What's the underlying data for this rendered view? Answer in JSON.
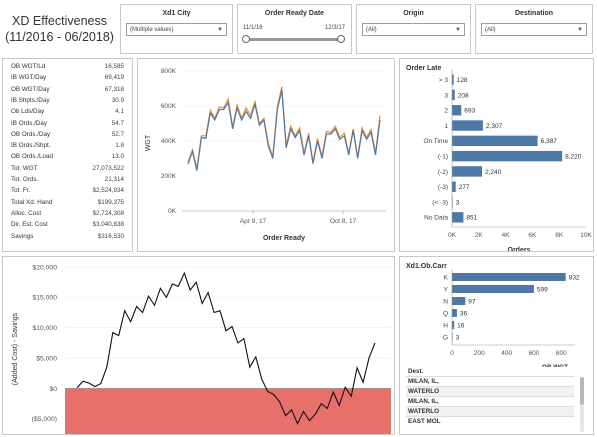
{
  "header": {
    "title": "XD Effectiveness",
    "subtitle": "(11/2016 - 06/2018)"
  },
  "filters": {
    "xd1_city": {
      "label": "Xd1 City",
      "value": "(Multiple values)"
    },
    "order_ready_date": {
      "label": "Order Ready Date",
      "start": "11/1/16",
      "end": "12/3/17"
    },
    "origin": {
      "label": "Origin",
      "value": "(All)"
    },
    "destination": {
      "label": "Destination",
      "value": "(All)"
    }
  },
  "kpis": [
    {
      "label": "OB WGT/Ld",
      "value": "16,585"
    },
    {
      "label": "IB WGT/Day",
      "value": "69,419"
    },
    {
      "label": "OB WGT/Day",
      "value": "67,318"
    },
    {
      "label": "IB Shpts./Day",
      "value": "30.9"
    },
    {
      "label": "Ob Lds/Day",
      "value": "4.1"
    },
    {
      "label": "IB Ords./Day",
      "value": "54.7"
    },
    {
      "label": "OB Ords./Day",
      "value": "52.7"
    },
    {
      "label": "IB Ords./Shpt.",
      "value": "1.8"
    },
    {
      "label": "OB Ords./Load",
      "value": "13.0"
    },
    {
      "label": "Tot. WGT",
      "value": "27,073,522"
    },
    {
      "label": "Tot. Ords.",
      "value": "21,314"
    },
    {
      "label": "Tot. Fr.",
      "value": "$2,524,934"
    },
    {
      "label": "Total Xd. Hand",
      "value": "$199,375"
    },
    {
      "label": "Alloc. Cost",
      "value": "$2,724,308"
    },
    {
      "label": "Dir. Est. Cost",
      "value": "$3,040,838"
    },
    {
      "label": "Savings",
      "value": "$316,530"
    }
  ],
  "wgt_chart": {
    "ylabel": "WGT",
    "xlabel": "Order Ready",
    "y_ticks": [
      "800K",
      "600K",
      "400K",
      "200K",
      "0K"
    ],
    "x_ticks": [
      "Apr 9, 17",
      "Oct 8, 17"
    ],
    "colors": {
      "series_a": "#4e79a7",
      "series_b": "#f28e2b"
    }
  },
  "order_late": {
    "title": "Order Late",
    "xlabel": "Orders",
    "x_ticks": [
      "0K",
      "2K",
      "4K",
      "6K",
      "8K",
      "10K"
    ],
    "bar_color": "#4e79a7"
  },
  "savings_chart": {
    "ylabel": "(Added Cost) - Savings",
    "y_ticks": [
      "$20,000",
      "$15,000",
      "$10,000",
      "$5,000",
      "$0",
      "($5,000)"
    ],
    "colors": {
      "negative_band": "#e8706a",
      "line": "#111111"
    }
  },
  "carrier": {
    "title": "Xd1.Ob.Carr",
    "xlabel": "OB WGT",
    "x_ticks": [
      "0",
      "200",
      "400",
      "600",
      "800"
    ],
    "bar_color": "#4e79a7"
  },
  "dest_table": {
    "header": "Dest.",
    "rows": [
      "MILAN, IL,",
      "WATERLO",
      "MILAN, IL,",
      "WATERLO",
      "EAST MOL"
    ]
  },
  "chart_data": [
    {
      "type": "line",
      "title": "",
      "xlabel": "Order Ready",
      "ylabel": "WGT",
      "ylim": [
        0,
        800000
      ],
      "x_ticks": [
        "Apr 9, 17",
        "Oct 8, 17"
      ],
      "series": [
        {
          "values": [
            270000,
            340000,
            230000,
            420000,
            415000,
            560000,
            520000,
            580000,
            580000,
            620000,
            470000,
            590000,
            520000,
            570000,
            530000,
            610000,
            490000,
            520000,
            370000,
            300000,
            580000,
            690000,
            360000,
            470000,
            420000,
            460000,
            320000,
            430000,
            270000,
            400000,
            300000,
            440000,
            440000,
            470000,
            410000,
            430000,
            320000,
            460000,
            300000,
            460000,
            410000,
            450000,
            320000,
            520000
          ]
        },
        {
          "values": [
            280000,
            350000,
            245000,
            430000,
            430000,
            575000,
            530000,
            595000,
            590000,
            640000,
            480000,
            605000,
            530000,
            590000,
            545000,
            625000,
            500000,
            530000,
            385000,
            310000,
            595000,
            710000,
            375000,
            485000,
            430000,
            475000,
            330000,
            445000,
            280000,
            415000,
            310000,
            455000,
            450000,
            485000,
            420000,
            445000,
            330000,
            470000,
            310000,
            475000,
            420000,
            465000,
            330000,
            545000
          ]
        }
      ]
    },
    {
      "type": "bar",
      "title": "Order Late",
      "xlabel": "Orders",
      "categories": [
        "> 3",
        "3",
        "2",
        "1",
        "On Time",
        "(-1)",
        "(-2)",
        "(-3)",
        "(< -3)",
        "No Data"
      ],
      "values": [
        128,
        208,
        693,
        2307,
        6387,
        8220,
        2240,
        277,
        3,
        851
      ],
      "labels": [
        "128",
        "208",
        "693",
        "2,307",
        "6,387",
        "8,220",
        "2,240",
        "277",
        "3",
        "851"
      ],
      "xlim": [
        0,
        10000
      ]
    },
    {
      "type": "line",
      "title": "",
      "xlabel": "",
      "ylabel": "(Added Cost) - Savings",
      "ylim": [
        -7500,
        20000
      ],
      "series": [
        {
          "values": [
            100,
            1200,
            900,
            300,
            800,
            3500,
            9200,
            8700,
            12800,
            11000,
            13500,
            12500,
            15200,
            13700,
            16500,
            15000,
            17200,
            16800,
            19000,
            16200,
            17500,
            14000,
            15800,
            12500,
            12800,
            9500,
            10200,
            7500,
            8200,
            3500,
            5200,
            1500,
            -500,
            -1000,
            -2200,
            -4500,
            -3500,
            -5800,
            -3800,
            -5300,
            -4200,
            -2500,
            -3300,
            -600,
            -2800,
            200,
            -1300,
            3400,
            1000,
            5000,
            7500
          ]
        }
      ]
    },
    {
      "type": "bar",
      "title": "Xd1.Ob.Carr",
      "xlabel": "OB WGT",
      "categories": [
        "K",
        "Y",
        "N",
        "Q",
        "H",
        "G"
      ],
      "values": [
        832,
        599,
        97,
        36,
        16,
        3
      ],
      "xlim": [
        0,
        900
      ]
    }
  ]
}
